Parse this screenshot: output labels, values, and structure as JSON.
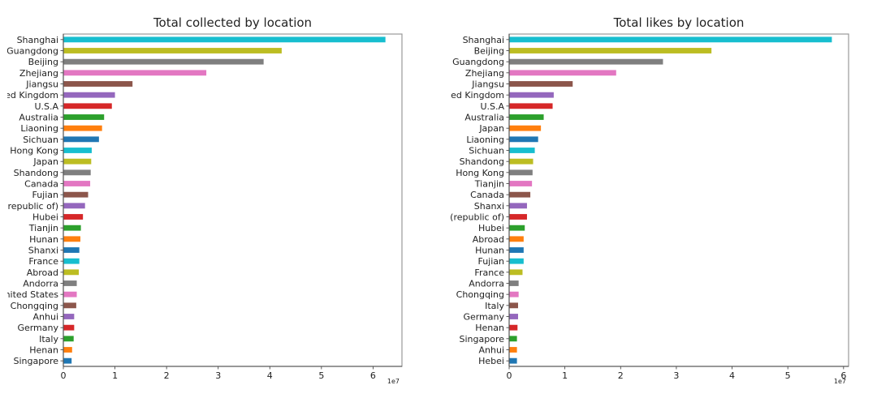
{
  "chart_data": [
    {
      "type": "bar",
      "orientation": "horizontal",
      "title": "Total collected by location",
      "xlabel": "",
      "ylabel": "",
      "x_multiplier_label": "1e7",
      "xlim": [
        0,
        6.56
      ],
      "xticks": [
        "0",
        "1",
        "2",
        "3",
        "4",
        "5",
        "6"
      ],
      "grid": false,
      "categories": [
        "Shanghai",
        "Guangdong",
        "Beijing",
        "Zhejiang",
        "Jiangsu",
        "ed Kingdom",
        "U.S.A",
        "Australia",
        "Liaoning",
        "Sichuan",
        "Hong Kong",
        "Japan",
        "Shandong",
        "Canada",
        "Fujian",
        "(republic of)",
        "Hubei",
        "Tianjin",
        "Hunan",
        "Shanxi",
        "France",
        "Abroad",
        "Andorra",
        "nited States",
        "Chongqing",
        "Anhui",
        "Germany",
        "Italy",
        "Henan",
        "Singapore"
      ],
      "values": [
        6.24,
        4.23,
        3.88,
        2.77,
        1.34,
        1.0,
        0.94,
        0.79,
        0.75,
        0.69,
        0.55,
        0.54,
        0.53,
        0.52,
        0.48,
        0.42,
        0.38,
        0.34,
        0.33,
        0.31,
        0.31,
        0.3,
        0.26,
        0.26,
        0.25,
        0.21,
        0.21,
        0.2,
        0.17,
        0.16
      ]
    },
    {
      "type": "bar",
      "orientation": "horizontal",
      "title": "Total likes by location",
      "xlabel": "",
      "ylabel": "",
      "x_multiplier_label": "1e7",
      "xlim": [
        0,
        6.09
      ],
      "xticks": [
        "0",
        "1",
        "2",
        "3",
        "4",
        "5",
        "6"
      ],
      "grid": false,
      "categories": [
        "Shanghai",
        "Beijing",
        "Guangdong",
        "Zhejiang",
        "Jiangsu",
        "ed Kingdom",
        "U.S.A",
        "Australia",
        "Japan",
        "Liaoning",
        "Sichuan",
        "Shandong",
        "Hong Kong",
        "Tianjin",
        "Canada",
        "Shanxi",
        "(republic of)",
        "Hubei",
        "Abroad",
        "Hunan",
        "Fujian",
        "France",
        "Andorra",
        "Chongqing",
        "Italy",
        "Germany",
        "Henan",
        "Singapore",
        "Anhui",
        "Hebei"
      ],
      "values": [
        5.79,
        3.63,
        2.76,
        1.92,
        1.14,
        0.8,
        0.78,
        0.62,
        0.57,
        0.52,
        0.46,
        0.43,
        0.42,
        0.41,
        0.38,
        0.32,
        0.32,
        0.28,
        0.26,
        0.26,
        0.26,
        0.24,
        0.17,
        0.17,
        0.16,
        0.16,
        0.15,
        0.14,
        0.14,
        0.14
      ]
    }
  ],
  "colors": [
    "#1f77b4",
    "#ff7f0e",
    "#2ca02c",
    "#d62728",
    "#9467bd",
    "#8c564b",
    "#e377c2",
    "#7f7f7f",
    "#bcbd22",
    "#17becf"
  ]
}
